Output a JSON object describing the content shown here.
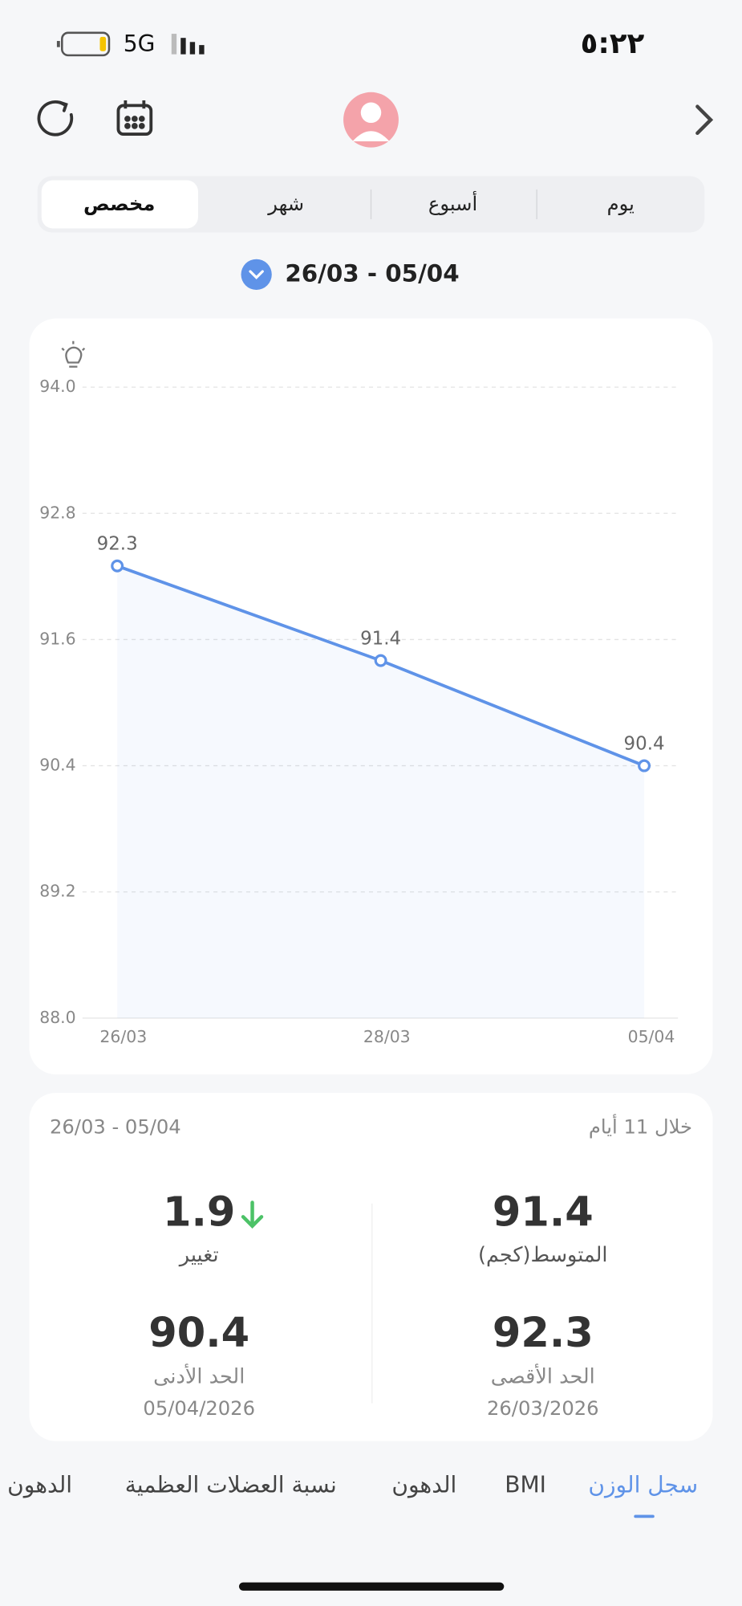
{
  "status_bar": {
    "network": "5G",
    "time": "٥:٢٢"
  },
  "tabs": {
    "items": [
      "يوم",
      "أسبوع",
      "شهر",
      "مخصص"
    ],
    "selected": 3
  },
  "date_range": "26/03 - 05/04",
  "chart_data": {
    "type": "line",
    "categories": [
      "26/03",
      "28/03",
      "05/04"
    ],
    "series": [
      {
        "name": "Weight",
        "color": "#5f93e8",
        "values": [
          92.3,
          91.4,
          90.4
        ]
      }
    ],
    "ylim": [
      88,
      94
    ],
    "yticks": [
      {
        "value": 88,
        "label": "88.0"
      },
      {
        "value": 89.2,
        "label": "89.2"
      },
      {
        "value": 90.4,
        "label": "90.4"
      },
      {
        "value": 91.6,
        "label": "91.6"
      },
      {
        "value": 92.8,
        "label": "92.8"
      },
      {
        "value": 94,
        "label": "94.0"
      }
    ],
    "grid": true
  },
  "summary": {
    "range": "26/03 - 05/04",
    "period": "خلال 11 أيام",
    "change": {
      "value": 1.9,
      "label": "تغيير"
    },
    "average": {
      "value": 91.4,
      "label": "المتوسط(كجم)"
    },
    "min": {
      "value": 90.4,
      "label": "الحد الأدنى",
      "date": "05/04/2026"
    },
    "max": {
      "value": 92.3,
      "label": "الحد الأقصى",
      "date": "26/03/2026"
    }
  },
  "bottom_tabs": [
    "سجل الوزن",
    "BMI",
    "الدهون",
    "نسبة العضلات العظمية",
    "الدهون"
  ]
}
